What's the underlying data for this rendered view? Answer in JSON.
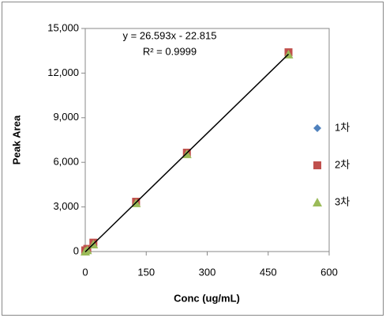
{
  "chart_data": {
    "type": "scatter",
    "x_label": "Conc (ug/mL)",
    "y_label": "Peak Area",
    "xlim": [
      0,
      600
    ],
    "xticks": [
      0,
      150,
      300,
      450,
      600
    ],
    "ylim": [
      0,
      15000
    ],
    "yticks": [
      0,
      {
        "value": 3000,
        "label": "3,000"
      },
      {
        "value": 6000,
        "label": "6,000"
      },
      {
        "value": 9000,
        "label": "9,000"
      },
      {
        "value": 12000,
        "label": "12,000"
      },
      {
        "value": 15000,
        "label": "15,000"
      }
    ],
    "legend": "right",
    "series": [
      {
        "name": "1차",
        "color": "#4f81bd",
        "marker": "diamond",
        "x": [
          0,
          5,
          20,
          125,
          250,
          500
        ],
        "values": [
          0,
          110,
          510,
          3300,
          6630,
          13270
        ]
      },
      {
        "name": "2차",
        "color": "#c0504d",
        "marker": "square",
        "x": [
          0,
          5,
          20,
          125,
          250,
          500
        ],
        "values": [
          80,
          180,
          600,
          3350,
          6650,
          13400
        ]
      },
      {
        "name": "3차",
        "color": "#9bbb59",
        "marker": "triangle",
        "x": [
          0,
          5,
          20,
          125,
          250,
          500
        ],
        "values": [
          0,
          90,
          480,
          3250,
          6550,
          13250
        ]
      }
    ],
    "trendline": {
      "equation": "y = 26.593x - 22.815",
      "r2": "R² = 0.9999",
      "slope": 26.593,
      "intercept": -22.815
    }
  }
}
